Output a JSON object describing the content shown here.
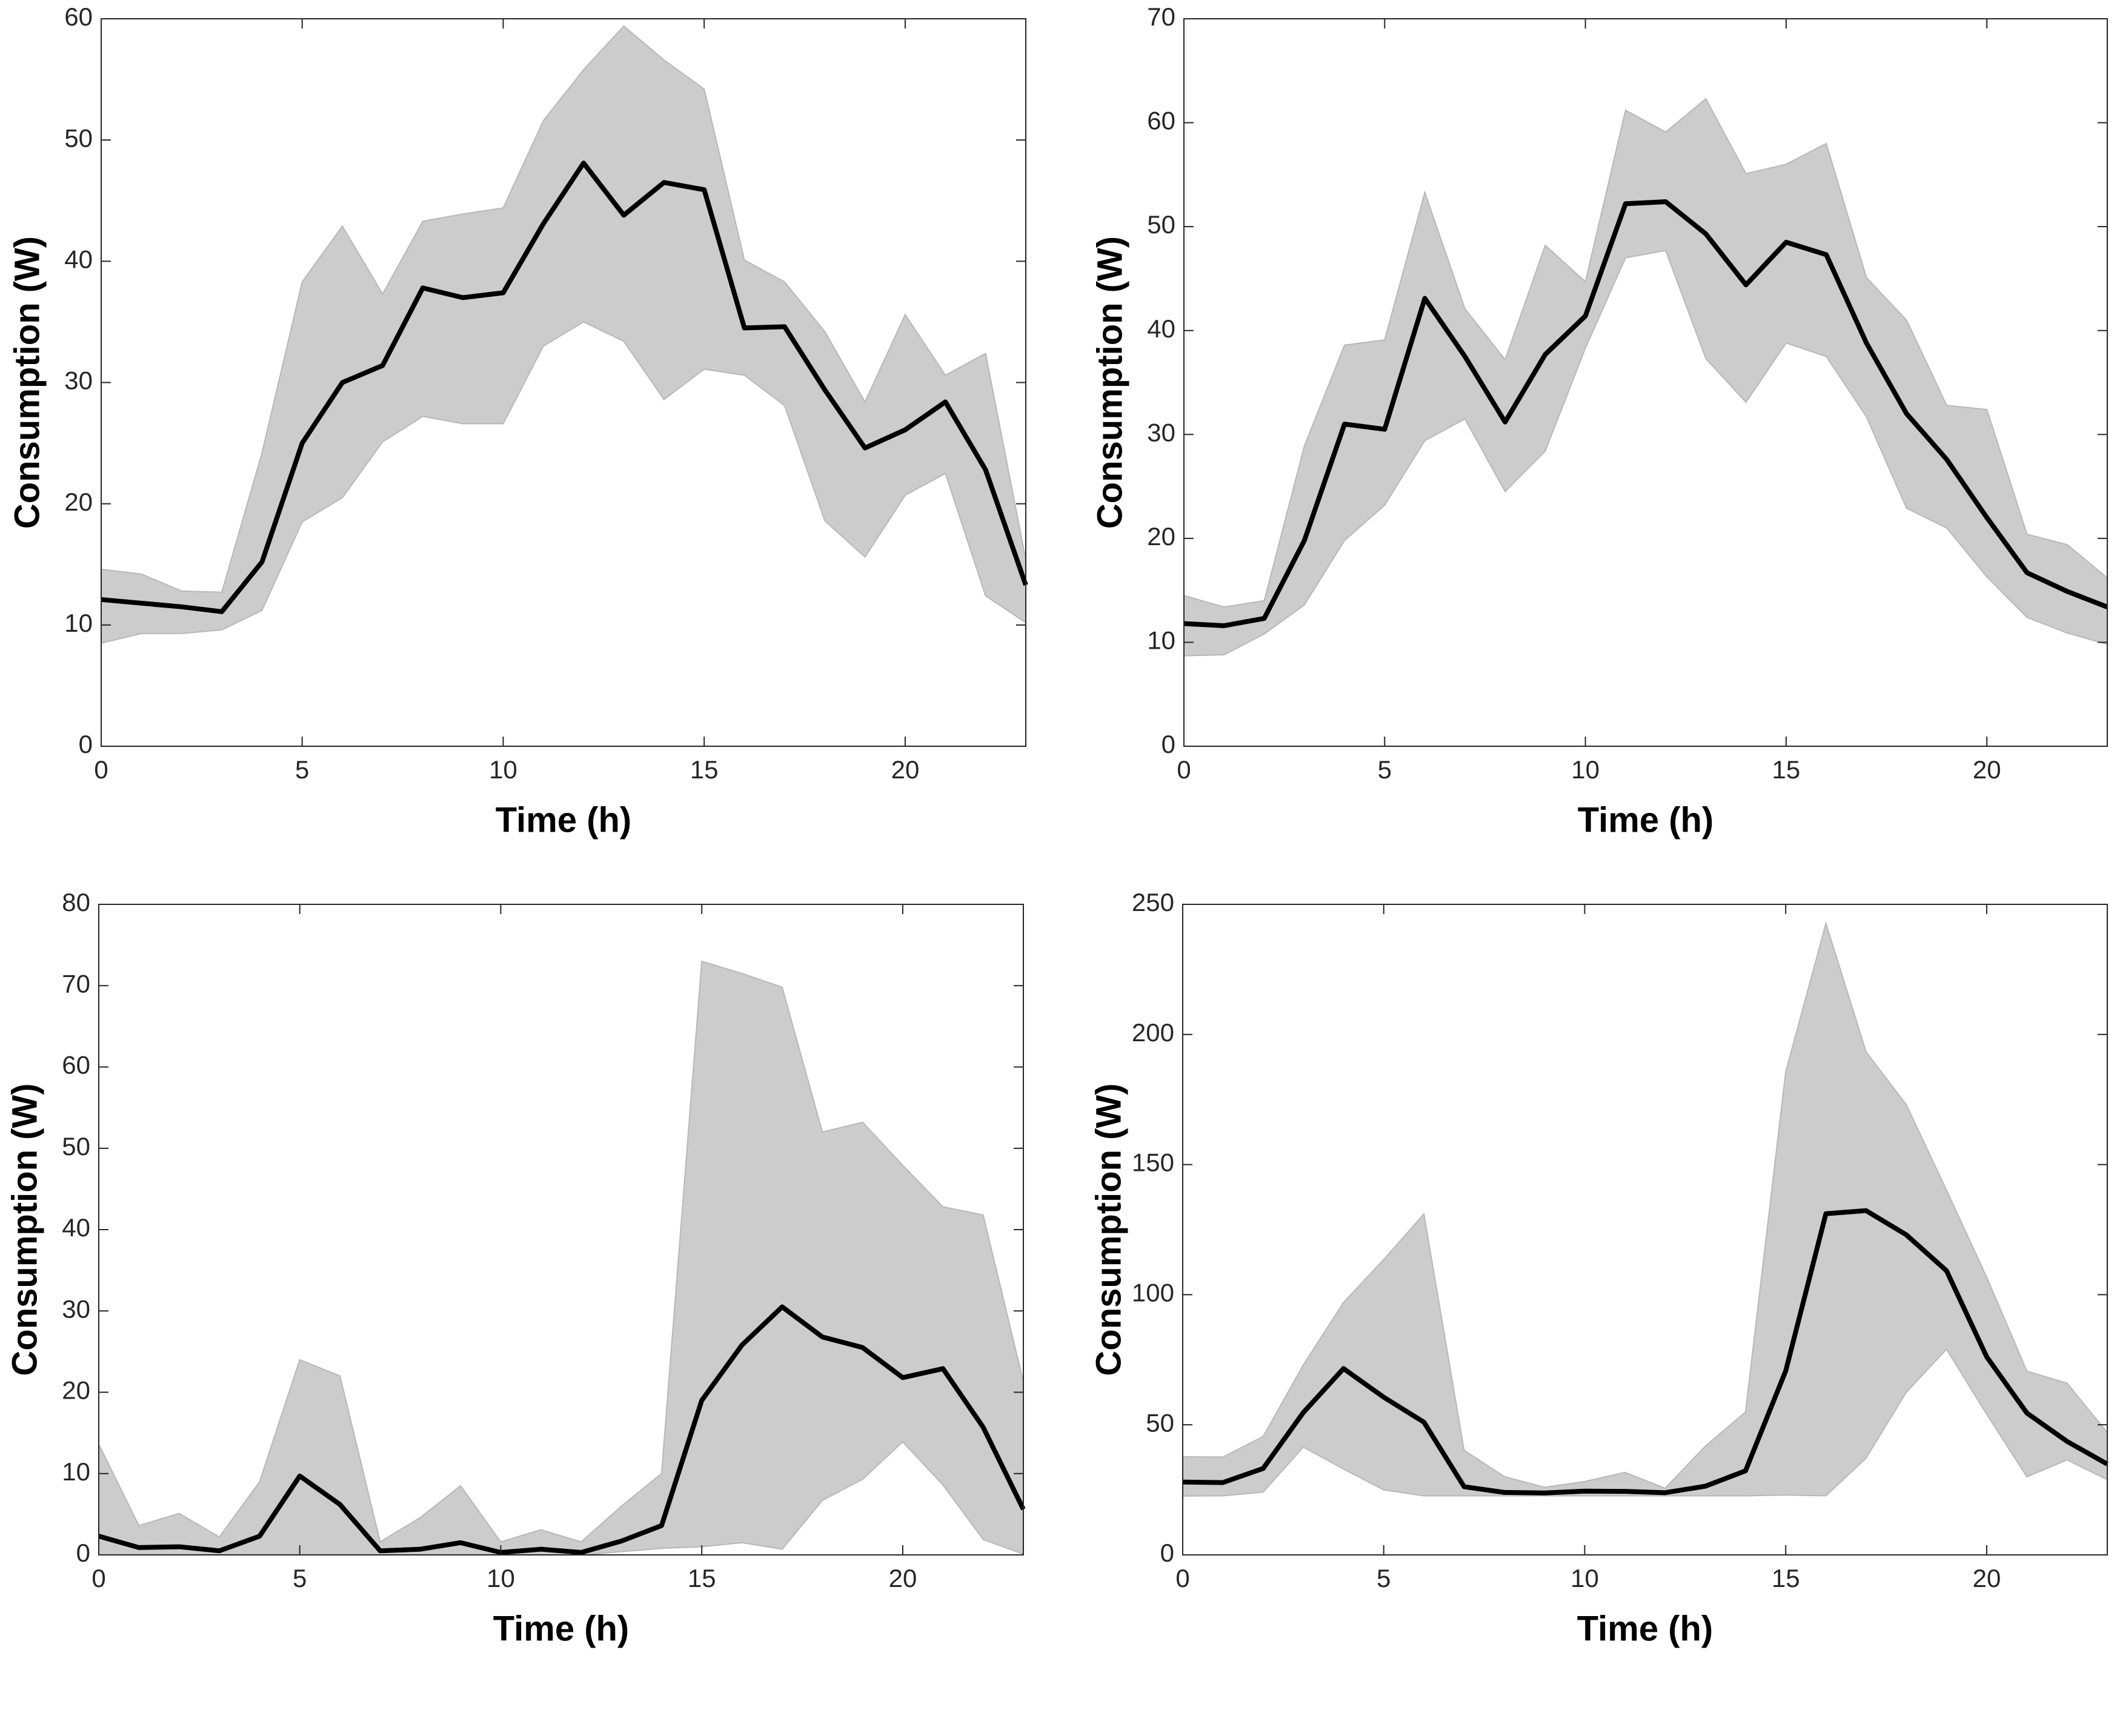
{
  "chart_data": [
    {
      "type": "line",
      "xlabel": "Time (h)",
      "ylabel": "Consumption (W)",
      "x": [
        0,
        1,
        2,
        3,
        4,
        5,
        6,
        7,
        8,
        9,
        10,
        11,
        12,
        13,
        14,
        15,
        16,
        17,
        18,
        19,
        20,
        21,
        22,
        23
      ],
      "xlim": [
        0,
        23
      ],
      "xticks": [
        0,
        5,
        10,
        15,
        20
      ],
      "ylim": [
        0,
        60
      ],
      "yticks": [
        0,
        10,
        20,
        30,
        40,
        50,
        60
      ],
      "series": [
        {
          "color": "#000000",
          "values": [
            12.1,
            11.8,
            11.5,
            11.1,
            15.2,
            25,
            30,
            31.4,
            37.8,
            37,
            37.4,
            43.1,
            48.1,
            43.8,
            46.5,
            45.9,
            34.5,
            34.6,
            29.4,
            24.6,
            26.1,
            28.4,
            22.8,
            13.3
          ]
        }
      ],
      "band": {
        "color": "#cccccc",
        "upper": [
          14.6,
          14.2,
          12.8,
          12.7,
          24.2,
          38.3,
          42.9,
          37.3,
          43.3,
          43.9,
          44.4,
          51.6,
          55.8,
          59.4,
          56.6,
          54.2,
          40.1,
          38.3,
          34.2,
          28.4,
          35.6,
          30.6,
          32.4,
          15.4
        ],
        "lower": [
          8.5,
          9.3,
          9.3,
          9.6,
          11.2,
          18.5,
          20.5,
          25.1,
          27.2,
          26.6,
          26.6,
          33.0,
          35.0,
          33.4,
          28.6,
          31.1,
          30.6,
          28.1,
          18.6,
          15.6,
          20.7,
          22.5,
          12.4,
          10.2
        ]
      }
    },
    {
      "type": "line",
      "xlabel": "Time (h)",
      "ylabel": "Consumption (W)",
      "x": [
        0,
        1,
        2,
        3,
        4,
        5,
        6,
        7,
        8,
        9,
        10,
        11,
        12,
        13,
        14,
        15,
        16,
        17,
        18,
        19,
        20,
        21,
        22,
        23
      ],
      "xlim": [
        0,
        23
      ],
      "xticks": [
        0,
        5,
        10,
        15,
        20
      ],
      "ylim": [
        0,
        70
      ],
      "yticks": [
        0,
        10,
        20,
        30,
        40,
        50,
        60,
        70
      ],
      "series": [
        {
          "color": "#000000",
          "values": [
            11.8,
            11.6,
            12.3,
            19.8,
            31,
            30.5,
            43.1,
            37.5,
            31.2,
            37.7,
            41.4,
            52.2,
            52.4,
            49.3,
            44.4,
            48.5,
            47.3,
            38.8,
            32,
            27.6,
            22,
            16.7,
            14.9,
            13.4
          ]
        }
      ],
      "band": {
        "color": "#cccccc",
        "upper": [
          14.5,
          13.4,
          14,
          28.9,
          38.6,
          39.1,
          53.3,
          42.1,
          37.2,
          48.2,
          44.7,
          61.2,
          59.1,
          62.3,
          55.1,
          56,
          58,
          45.1,
          41,
          32.8,
          32.4,
          20.4,
          19.4,
          16.2
        ],
        "lower": [
          8.7,
          8.8,
          10.8,
          13.6,
          19.8,
          23.2,
          29.4,
          31.5,
          24.5,
          28.4,
          38.3,
          47,
          47.7,
          37.3,
          33.1,
          38.8,
          37.5,
          31.7,
          22.9,
          21,
          16.3,
          12.4,
          10.9,
          9.8
        ]
      }
    },
    {
      "type": "line",
      "xlabel": "Time (h)",
      "ylabel": "Consumption (W)",
      "x": [
        0,
        1,
        2,
        3,
        4,
        5,
        6,
        7,
        8,
        9,
        10,
        11,
        12,
        13,
        14,
        15,
        16,
        17,
        18,
        19,
        20,
        21,
        22,
        23
      ],
      "xlim": [
        0,
        23
      ],
      "xticks": [
        0,
        5,
        10,
        15,
        20
      ],
      "ylim": [
        0,
        80
      ],
      "yticks": [
        0,
        10,
        20,
        30,
        40,
        50,
        60,
        70,
        80
      ],
      "series": [
        {
          "color": "#000000",
          "values": [
            2.3,
            0.9,
            1,
            0.5,
            2.3,
            9.7,
            6.2,
            0.5,
            0.7,
            1.5,
            0.3,
            0.7,
            0.3,
            1.7,
            3.6,
            19,
            25.8,
            30.5,
            26.8,
            25.5,
            21.8,
            22.9,
            15.7,
            5.6
          ]
        }
      ],
      "band": {
        "color": "#cccccc",
        "upper": [
          13.6,
          3.6,
          5.1,
          2.2,
          9,
          24,
          22,
          1.6,
          4.6,
          8.5,
          1.6,
          3.1,
          1.6,
          6,
          10,
          73,
          71.5,
          69.8,
          52,
          53.2,
          47.9,
          42.8,
          41.8,
          21.3
        ],
        "lower": [
          0,
          0,
          0,
          0,
          0,
          0,
          0,
          0,
          0,
          0,
          0,
          0,
          0,
          0.4,
          0.8,
          1,
          1.5,
          0.7,
          6.7,
          9.3,
          13.9,
          8.6,
          1.9,
          0.1
        ]
      }
    },
    {
      "type": "line",
      "xlabel": "Time (h)",
      "ylabel": "Consumption (W)",
      "x": [
        0,
        1,
        2,
        3,
        4,
        5,
        6,
        7,
        8,
        9,
        10,
        11,
        12,
        13,
        14,
        15,
        16,
        17,
        18,
        19,
        20,
        21,
        22,
        23
      ],
      "xlim": [
        0,
        23
      ],
      "xticks": [
        0,
        5,
        10,
        15,
        20
      ],
      "ylim": [
        0,
        250
      ],
      "yticks": [
        0,
        50,
        100,
        150,
        200,
        250
      ],
      "series": [
        {
          "color": "#000000",
          "values": [
            28,
            27.8,
            33.2,
            54.7,
            71.6,
            60.6,
            51,
            26.2,
            24,
            23.8,
            24.5,
            24.4,
            23.9,
            26.4,
            32.3,
            70.7,
            131.1,
            132.3,
            123,
            109.2,
            76.1,
            54.5,
            43.6,
            34.9
          ]
        }
      ],
      "band": {
        "color": "#cccccc",
        "upper": [
          37.7,
          37.6,
          45.5,
          73,
          97,
          113.5,
          131,
          40.2,
          30.1,
          26,
          28.2,
          31.7,
          25.6,
          41.8,
          54.9,
          185.6,
          242.7,
          193.3,
          173,
          140.2,
          106.7,
          70.6,
          66,
          47
        ],
        "lower": [
          22.6,
          22.7,
          24.1,
          41.4,
          33,
          25,
          22.7,
          22.7,
          22.7,
          22.7,
          22.7,
          22.7,
          22.7,
          22.7,
          22.7,
          23,
          22.7,
          37.2,
          62.5,
          79,
          54,
          30,
          36.5,
          28.9
        ]
      }
    }
  ]
}
